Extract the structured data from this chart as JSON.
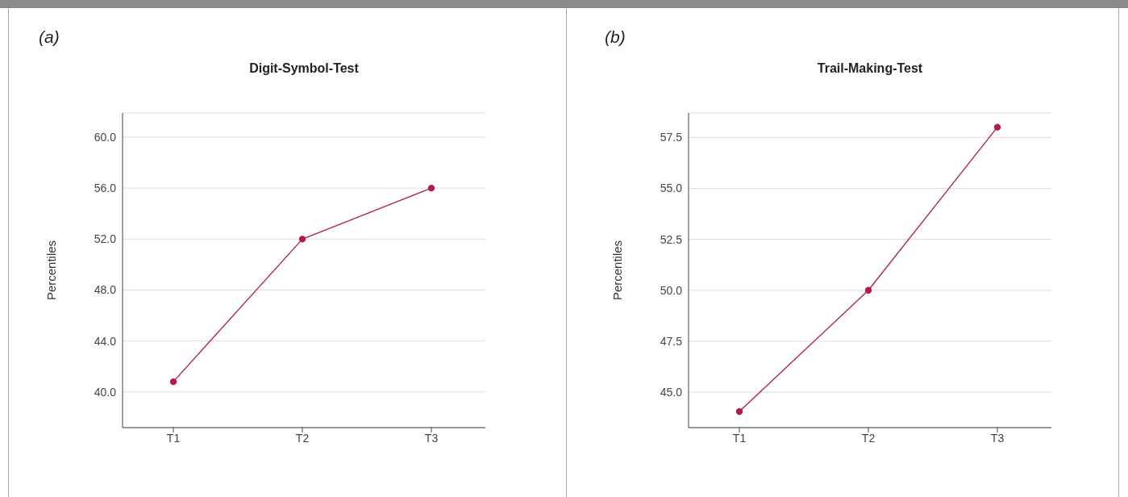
{
  "chart_data": [
    {
      "type": "line",
      "title": "Digit-Symbol-Test",
      "ylabel": "Percentiles",
      "annotations": [
        "(a)"
      ],
      "categories": [
        "T1",
        "T2",
        "T3"
      ],
      "series": [
        {
          "color": "#b5174f",
          "values": [
            40.8,
            52.0,
            56.0
          ]
        }
      ],
      "ylim": [
        37.2,
        61.9
      ],
      "yticks": [
        {
          "value": 40,
          "label": "40.0"
        },
        {
          "value": 44,
          "label": "44.0"
        },
        {
          "value": 48,
          "label": "48.0"
        },
        {
          "value": 52,
          "label": "52.0"
        },
        {
          "value": 56,
          "label": "56.0"
        },
        {
          "value": 60,
          "label": "60.0"
        }
      ],
      "grid": "y",
      "marker": "circle",
      "line_style": "solid"
    },
    {
      "type": "line",
      "title": "Trail-Making-Test",
      "ylabel": "Percentiles",
      "annotations": [
        "(b)"
      ],
      "categories": [
        "T1",
        "T2",
        "T3"
      ],
      "series": [
        {
          "color": "#b5174f",
          "values": [
            44.05,
            50.0,
            58.0
          ]
        }
      ],
      "ylim": [
        43.26,
        58.7
      ],
      "yticks": [
        {
          "value": 45,
          "label": "45.0"
        },
        {
          "value": 47.5,
          "label": "47.5"
        },
        {
          "value": 50,
          "label": "50.0"
        },
        {
          "value": 52.5,
          "label": "52.5"
        },
        {
          "value": 55,
          "label": "55.0"
        },
        {
          "value": 57.5,
          "label": "57.5"
        }
      ],
      "grid": "y",
      "marker": "circle",
      "line_style": "solid"
    }
  ]
}
